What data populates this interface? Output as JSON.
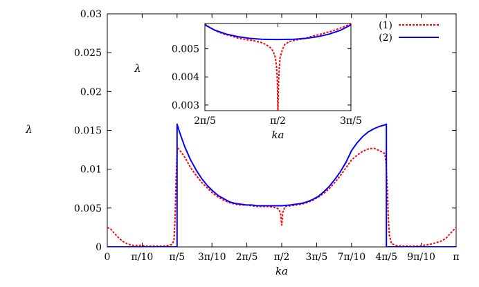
{
  "chart_data": {
    "type": "line",
    "xlabel": "ka",
    "ylabel": "λ",
    "xlim": [
      0,
      3.14159
    ],
    "ylim": [
      0,
      0.03
    ],
    "grid": false,
    "legend_position": "top-right",
    "x_ticks": [
      {
        "value": 0,
        "label": "0"
      },
      {
        "value": 0.314159,
        "label": "π/10"
      },
      {
        "value": 0.628319,
        "label": "π/5"
      },
      {
        "value": 0.942478,
        "label": "3π/10"
      },
      {
        "value": 1.256637,
        "label": "2π/5"
      },
      {
        "value": 1.570796,
        "label": "π/2"
      },
      {
        "value": 1.884956,
        "label": "3π/5"
      },
      {
        "value": 2.199115,
        "label": "7π/10"
      },
      {
        "value": 2.513274,
        "label": "4π/5"
      },
      {
        "value": 2.827433,
        "label": "9π/10"
      },
      {
        "value": 3.141593,
        "label": "π"
      }
    ],
    "y_ticks": [
      {
        "value": 0,
        "label": "0"
      },
      {
        "value": 0.005,
        "label": "0.005"
      },
      {
        "value": 0.01,
        "label": "0.01"
      },
      {
        "value": 0.015,
        "label": "0.015"
      },
      {
        "value": 0.02,
        "label": "0.02"
      },
      {
        "value": 0.025,
        "label": "0.025"
      },
      {
        "value": 0.03,
        "label": "0.03"
      }
    ],
    "series": [
      {
        "name": "(1)",
        "color": "#ff0000",
        "dash": "dotted",
        "x": [
          0,
          0.03,
          0.06,
          0.1,
          0.14,
          0.18,
          0.22,
          0.26,
          0.3,
          0.35,
          0.4,
          0.45,
          0.5,
          0.55,
          0.58,
          0.6,
          0.61,
          0.62,
          0.63,
          0.65,
          0.7,
          0.75,
          0.8,
          0.85,
          0.9,
          0.95,
          1.0,
          1.05,
          1.1,
          1.15,
          1.2,
          1.25,
          1.3,
          1.35,
          1.4,
          1.45,
          1.5,
          1.54,
          1.56,
          1.565,
          1.5708,
          1.576,
          1.58,
          1.6,
          1.65,
          1.7,
          1.75,
          1.8,
          1.85,
          1.9,
          1.95,
          2.0,
          2.05,
          2.1,
          2.15,
          2.2,
          2.25,
          2.3,
          2.35,
          2.4,
          2.45,
          2.5,
          2.51,
          2.52,
          2.53,
          2.54,
          2.56,
          2.6,
          2.65,
          2.7,
          2.75,
          2.8,
          2.85,
          2.9,
          2.95,
          3.0,
          3.05,
          3.1,
          3.14159
        ],
        "y": [
          0.0025,
          0.0023,
          0.0018,
          0.0012,
          0.0007,
          0.0004,
          0.0002,
          0.0002,
          0.0002,
          0.0001,
          0.0001,
          0.0001,
          0.0001,
          0.0002,
          0.0003,
          0.0008,
          0.0035,
          0.009,
          0.0128,
          0.0125,
          0.0115,
          0.0102,
          0.0092,
          0.0083,
          0.0076,
          0.0069,
          0.0064,
          0.006,
          0.0057,
          0.0055,
          0.0054,
          0.0054,
          0.0053,
          0.0052,
          0.0052,
          0.0052,
          0.0051,
          0.0049,
          0.0044,
          0.0036,
          0.0028,
          0.0036,
          0.0044,
          0.0052,
          0.0053,
          0.0054,
          0.0055,
          0.0057,
          0.006,
          0.0064,
          0.0069,
          0.0075,
          0.0083,
          0.0092,
          0.0102,
          0.0112,
          0.0118,
          0.0123,
          0.0126,
          0.0127,
          0.0124,
          0.012,
          0.0108,
          0.008,
          0.004,
          0.0015,
          0.0004,
          0.0002,
          0.0001,
          0.0001,
          0.0001,
          0.0001,
          0.0002,
          0.0003,
          0.0005,
          0.0007,
          0.0011,
          0.0019,
          0.0025
        ]
      },
      {
        "name": "(2)",
        "color": "#0000ff",
        "dash": "solid",
        "x": [
          0,
          0.6283,
          0.6283,
          0.65,
          0.7,
          0.75,
          0.8,
          0.85,
          0.9,
          0.95,
          1.0,
          1.05,
          1.1,
          1.15,
          1.2,
          1.25,
          1.3,
          1.35,
          1.4,
          1.45,
          1.5,
          1.5708,
          1.65,
          1.7,
          1.75,
          1.8,
          1.85,
          1.9,
          1.95,
          2.0,
          2.05,
          2.1,
          2.15,
          2.2,
          2.25,
          2.3,
          2.35,
          2.4,
          2.45,
          2.5,
          2.5133,
          2.5133,
          3.14159
        ],
        "y": [
          0,
          0,
          0.0158,
          0.0148,
          0.0128,
          0.0112,
          0.0099,
          0.0088,
          0.0079,
          0.0072,
          0.0066,
          0.0062,
          0.0058,
          0.0056,
          0.0055,
          0.0054,
          0.0054,
          0.0053,
          0.0053,
          0.0053,
          0.0053,
          0.0053,
          0.0054,
          0.0055,
          0.0056,
          0.0058,
          0.0061,
          0.0065,
          0.0071,
          0.0078,
          0.0087,
          0.0097,
          0.0109,
          0.0124,
          0.0134,
          0.0142,
          0.0148,
          0.0152,
          0.0155,
          0.0157,
          0.0158,
          0,
          0
        ]
      }
    ],
    "inset": {
      "xlabel": "ka",
      "ylabel": "λ",
      "xlim": [
        1.256637,
        1.884956
      ],
      "ylim": [
        0.0028,
        0.0059
      ],
      "x_ticks": [
        {
          "value": 1.256637,
          "label": "2π/5"
        },
        {
          "value": 1.570796,
          "label": "π/2"
        },
        {
          "value": 1.884956,
          "label": "3π/5"
        }
      ],
      "y_ticks": [
        {
          "value": 0.003,
          "label": "0.003"
        },
        {
          "value": 0.004,
          "label": "0.004"
        },
        {
          "value": 0.005,
          "label": "0.005"
        }
      ],
      "series": [
        {
          "name": "(1)",
          "color": "#ff0000",
          "dash": "dotted",
          "x": [
            1.2566,
            1.28,
            1.3,
            1.32,
            1.34,
            1.36,
            1.38,
            1.4,
            1.42,
            1.44,
            1.46,
            1.48,
            1.5,
            1.52,
            1.54,
            1.55,
            1.56,
            1.565,
            1.568,
            1.5708,
            1.574,
            1.577,
            1.58,
            1.59,
            1.6,
            1.62,
            1.64,
            1.66,
            1.68,
            1.7,
            1.72,
            1.74,
            1.76,
            1.78,
            1.8,
            1.82,
            1.84,
            1.86,
            1.885
          ],
          "y": [
            0.00588,
            0.00575,
            0.00566,
            0.00558,
            0.00552,
            0.00548,
            0.00543,
            0.00538,
            0.00535,
            0.00532,
            0.0053,
            0.00526,
            0.00522,
            0.00515,
            0.00503,
            0.00492,
            0.00468,
            0.00435,
            0.0039,
            0.0028,
            0.0039,
            0.00435,
            0.00468,
            0.00498,
            0.00515,
            0.00526,
            0.0053,
            0.00533,
            0.00536,
            0.0054,
            0.00545,
            0.00549,
            0.00553,
            0.00558,
            0.00562,
            0.00568,
            0.00574,
            0.0058,
            0.0059
          ]
        },
        {
          "name": "(2)",
          "color": "#0000ff",
          "dash": "solid",
          "x": [
            1.2566,
            1.3,
            1.35,
            1.4,
            1.45,
            1.5,
            1.5708,
            1.64,
            1.69,
            1.74,
            1.79,
            1.84,
            1.885
          ],
          "y": [
            0.00585,
            0.00566,
            0.00552,
            0.00543,
            0.00537,
            0.00534,
            0.00533,
            0.00534,
            0.00537,
            0.00543,
            0.00552,
            0.00566,
            0.00585
          ]
        }
      ]
    }
  }
}
